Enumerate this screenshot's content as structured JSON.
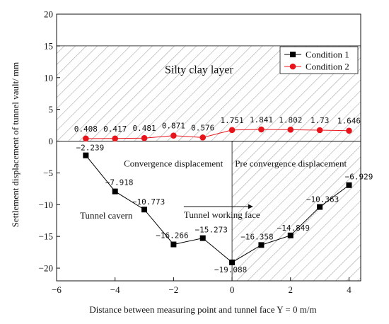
{
  "chart_data": {
    "type": "line",
    "xlabel": "Distance between measuring point and tunnel face Y = 0 m/m",
    "ylabel": "Settlement displacement of tunnel vault/ mm",
    "xlim": [
      -6,
      4.4
    ],
    "ylim": [
      -22,
      20
    ],
    "xticks": [
      -6,
      -4,
      -2,
      0,
      2,
      4
    ],
    "yticks": [
      -20,
      -15,
      -10,
      -5,
      0,
      5,
      10,
      15,
      20
    ],
    "legend_position": "top-right",
    "series": [
      {
        "name": "Condition 1",
        "color": "#000000",
        "marker": "square",
        "x": [
          -5,
          -4,
          -3,
          -2,
          -1,
          0,
          1,
          2,
          3,
          4
        ],
        "y": [
          -2.239,
          -7.918,
          -10.773,
          -16.266,
          -15.273,
          -19.088,
          -16.358,
          -14.849,
          -10.363,
          -6.929
        ],
        "labels": [
          "−2.239",
          "−7.918",
          "−10.773",
          "−16.266",
          "−15.273",
          "−19.088",
          "−16.358",
          "−14.849",
          "−10.363",
          "−6.929"
        ]
      },
      {
        "name": "Condition 2",
        "color": "#e8141b",
        "marker": "circle",
        "x": [
          -5,
          -4,
          -3,
          -2,
          -1,
          0,
          1,
          2,
          3,
          4
        ],
        "y": [
          0.408,
          0.417,
          0.481,
          0.871,
          0.576,
          1.751,
          1.841,
          1.802,
          1.73,
          1.646
        ],
        "labels": [
          "0.408",
          "0.417",
          "0.481",
          "0.871",
          "0.576",
          "1.751",
          "1.841",
          "1.802",
          "1.73",
          "1.646"
        ]
      }
    ],
    "regions": {
      "silty_clay": {
        "x": [
          -6,
          4.4
        ],
        "y": [
          0,
          15
        ]
      },
      "pre_convergence": {
        "x": [
          0,
          4.4
        ],
        "y": [
          -22,
          0
        ]
      }
    },
    "annotations": {
      "silty_clay_layer": "Silty clay layer",
      "convergence": "Convergence displacement",
      "pre_convergence": "Pre convergence displacement",
      "working_face": "Tunnel working face",
      "tunnel_cavern": "Tunnel cavern"
    }
  }
}
